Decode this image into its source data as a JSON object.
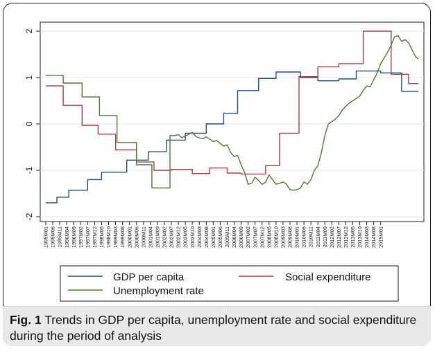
{
  "figure": {
    "label": "Fig. 1",
    "caption": "Trends in GDP per capita, unemployment rate and social expenditure during the period of analysis"
  },
  "chart_data": {
    "type": "line",
    "xlabel": "",
    "ylabel": "",
    "ylim": [
      -2,
      2
    ],
    "yticks": [
      -2,
      -1,
      0,
      1,
      2
    ],
    "grid": "horizontal",
    "legend_placement": "bottom",
    "x_tick_labels": [
      "1995M01",
      "1995M06",
      "1995M11",
      "1996M04",
      "1996M09",
      "1997M02",
      "1997M07",
      "1997M12",
      "1998M05",
      "1998M10",
      "1999M03",
      "1999M08",
      "2000M01",
      "2000M06",
      "2000M11",
      "2001M04",
      "2001M09",
      "2002M02",
      "2002M07",
      "2002M12",
      "2003M05",
      "2003M10",
      "2004M03",
      "2004M08",
      "2005M01",
      "2005M06",
      "2005M11",
      "2006M04",
      "2006M09",
      "2007M02",
      "2007M07",
      "2007M12",
      "2008M05",
      "2008M10",
      "2009M03",
      "2009M08",
      "2010M01",
      "2010M06",
      "2010M11",
      "2011M04",
      "2011M09",
      "2012M02",
      "2012M07",
      "2012M12",
      "2013M05",
      "2013M10",
      "2014M03",
      "2014M08",
      "2015M01"
    ],
    "series": [
      {
        "name": "GDP per capita",
        "color": "#1f4e79",
        "points": [
          [
            0,
            -1.7
          ],
          [
            1.6,
            -1.7
          ],
          [
            1.6,
            -1.58
          ],
          [
            3.3,
            -1.58
          ],
          [
            3.3,
            -1.43
          ],
          [
            6,
            -1.43
          ],
          [
            6,
            -1.2
          ],
          [
            8,
            -1.2
          ],
          [
            8,
            -1.04
          ],
          [
            11.6,
            -1.04
          ],
          [
            11.6,
            -0.78
          ],
          [
            14.7,
            -0.78
          ],
          [
            14.7,
            -0.6
          ],
          [
            17.3,
            -0.6
          ],
          [
            17.3,
            -0.35
          ],
          [
            20,
            -0.35
          ],
          [
            20,
            -0.2
          ],
          [
            23,
            -0.2
          ],
          [
            23,
            0
          ],
          [
            25.5,
            0
          ],
          [
            25.5,
            0.23
          ],
          [
            27.5,
            0.23
          ],
          [
            27.5,
            0.72
          ],
          [
            30.5,
            0.72
          ],
          [
            30.5,
            0.98
          ],
          [
            33,
            0.98
          ],
          [
            33,
            1.12
          ],
          [
            36.5,
            1.12
          ],
          [
            36.5,
            1.0
          ],
          [
            39,
            1.0
          ],
          [
            39,
            0.93
          ],
          [
            42,
            0.93
          ],
          [
            42,
            0.97
          ],
          [
            44.5,
            0.97
          ],
          [
            44.5,
            1.14
          ],
          [
            48,
            1.14
          ],
          [
            48,
            1.1
          ],
          [
            51,
            1.1
          ],
          [
            51,
            0.7
          ],
          [
            53.4,
            0.7
          ]
        ]
      },
      {
        "name": "Social expenditure",
        "color": "#b03a48",
        "points": [
          [
            0,
            0.82
          ],
          [
            2.5,
            0.82
          ],
          [
            2.5,
            0.4
          ],
          [
            5.2,
            0.4
          ],
          [
            5.2,
            -0.03
          ],
          [
            7.5,
            -0.03
          ],
          [
            7.5,
            -0.22
          ],
          [
            10,
            -0.22
          ],
          [
            10,
            -0.56
          ],
          [
            13,
            -0.56
          ],
          [
            13,
            -0.82
          ],
          [
            15.5,
            -0.82
          ],
          [
            15.5,
            -1.0
          ],
          [
            18,
            -1.0
          ],
          [
            18,
            -0.98
          ],
          [
            21,
            -0.98
          ],
          [
            21,
            -1.07
          ],
          [
            23.5,
            -1.07
          ],
          [
            23.5,
            -0.95
          ],
          [
            26,
            -0.95
          ],
          [
            26,
            -1.06
          ],
          [
            28,
            -1.06
          ],
          [
            28,
            -1.08
          ],
          [
            31.5,
            -1.08
          ],
          [
            31.5,
            -0.9
          ],
          [
            33.5,
            -0.9
          ],
          [
            33.5,
            -0.2
          ],
          [
            36.3,
            -0.2
          ],
          [
            36.3,
            1.02
          ],
          [
            39,
            1.02
          ],
          [
            39,
            1.23
          ],
          [
            42,
            1.23
          ],
          [
            42,
            1.3
          ],
          [
            45.5,
            1.3
          ],
          [
            45.5,
            2.0
          ],
          [
            49.5,
            2.0
          ],
          [
            49.5,
            1.07
          ],
          [
            52,
            1.07
          ],
          [
            52,
            0.87
          ],
          [
            53.4,
            0.87
          ]
        ]
      },
      {
        "name": "Unemployment rate",
        "color": "#4a7a2c",
        "points": [
          [
            0,
            1.05
          ],
          [
            2.5,
            1.05
          ],
          [
            2.5,
            0.88
          ],
          [
            5.2,
            0.88
          ],
          [
            5.2,
            0.58
          ],
          [
            7.7,
            0.58
          ],
          [
            7.7,
            0.18
          ],
          [
            10.2,
            0.18
          ],
          [
            10.2,
            -0.4
          ],
          [
            13,
            -0.4
          ],
          [
            13,
            -0.88
          ],
          [
            15.2,
            -0.88
          ],
          [
            15.2,
            -1.38
          ],
          [
            17.8,
            -1.38
          ],
          [
            17.8,
            -0.25
          ],
          [
            18.5,
            -0.25
          ],
          [
            19,
            -0.23
          ],
          [
            19.5,
            -0.3
          ],
          [
            20,
            -0.26
          ],
          [
            20.5,
            -0.22
          ],
          [
            21,
            -0.18
          ],
          [
            21.5,
            -0.27
          ],
          [
            22,
            -0.3
          ],
          [
            22.5,
            -0.32
          ],
          [
            23,
            -0.28
          ],
          [
            23.5,
            -0.33
          ],
          [
            24,
            -0.38
          ],
          [
            24.5,
            -0.36
          ],
          [
            25,
            -0.42
          ],
          [
            25.5,
            -0.48
          ],
          [
            26,
            -0.45
          ],
          [
            26.5,
            -0.62
          ],
          [
            27,
            -0.7
          ],
          [
            27.5,
            -0.68
          ],
          [
            28,
            -0.88
          ],
          [
            28.5,
            -1.05
          ],
          [
            29,
            -1.3
          ],
          [
            29.5,
            -1.28
          ],
          [
            30,
            -1.15
          ],
          [
            30.5,
            -1.22
          ],
          [
            31,
            -1.3
          ],
          [
            31.5,
            -1.26
          ],
          [
            32,
            -1.1
          ],
          [
            32.5,
            -1.2
          ],
          [
            33,
            -1.3
          ],
          [
            33.5,
            -1.28
          ],
          [
            34,
            -1.25
          ],
          [
            34.5,
            -1.3
          ],
          [
            35,
            -1.42
          ],
          [
            35.5,
            -1.43
          ],
          [
            36,
            -1.42
          ],
          [
            36.5,
            -1.38
          ],
          [
            37,
            -1.25
          ],
          [
            37.5,
            -1.3
          ],
          [
            38,
            -1.2
          ],
          [
            38.5,
            -1.0
          ],
          [
            39,
            -0.9
          ],
          [
            39.5,
            -0.62
          ],
          [
            40,
            -0.25
          ],
          [
            40.5,
            0.0
          ],
          [
            41,
            0.05
          ],
          [
            41.5,
            0.1
          ],
          [
            42,
            0.18
          ],
          [
            42.5,
            0.3
          ],
          [
            43,
            0.38
          ],
          [
            43.5,
            0.45
          ],
          [
            44,
            0.5
          ],
          [
            44.5,
            0.55
          ],
          [
            45,
            0.6
          ],
          [
            45.5,
            0.72
          ],
          [
            46,
            0.82
          ],
          [
            46.5,
            0.8
          ],
          [
            47,
            0.95
          ],
          [
            47.5,
            1.1
          ],
          [
            48,
            1.3
          ],
          [
            48.5,
            1.42
          ],
          [
            49,
            1.55
          ],
          [
            49.5,
            1.7
          ],
          [
            50,
            1.88
          ],
          [
            50.5,
            1.9
          ],
          [
            51,
            1.78
          ],
          [
            51.5,
            1.82
          ],
          [
            52,
            1.75
          ],
          [
            52.5,
            1.6
          ],
          [
            53,
            1.45
          ],
          [
            53.4,
            1.4
          ]
        ]
      }
    ]
  }
}
